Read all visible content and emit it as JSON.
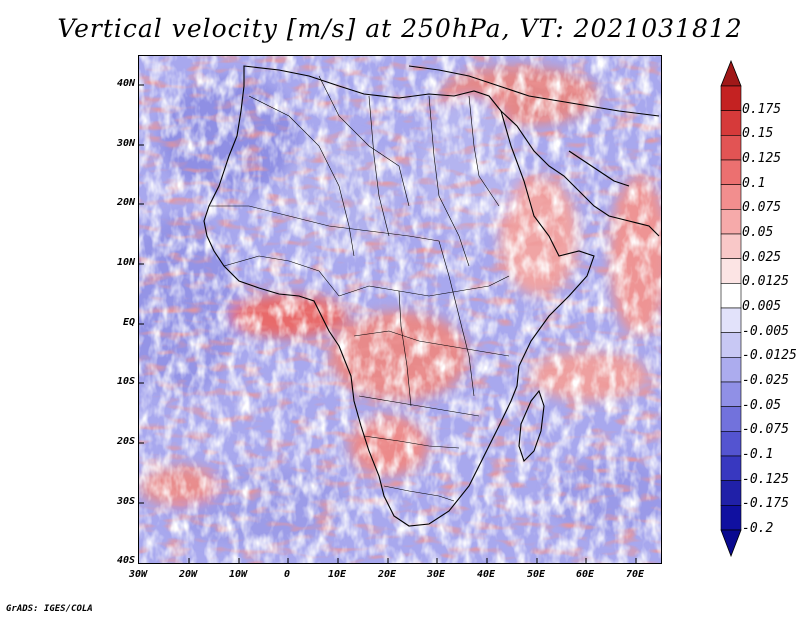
{
  "title": "Vertical velocity [m/s] at 250hPa, VT: 2021031812",
  "credit": "GrADS: IGES/COLA",
  "map": {
    "region": "Africa",
    "lon_range": [
      -30,
      75
    ],
    "lat_range": [
      -40,
      45
    ],
    "lat_labels": [
      "40N",
      "30N",
      "20N",
      "10N",
      "EQ",
      "10S",
      "20S",
      "30S",
      "40S"
    ],
    "lon_labels": [
      "30W",
      "20W",
      "10W",
      "0",
      "10E",
      "20E",
      "30E",
      "40E",
      "50E",
      "60E",
      "70E"
    ]
  },
  "colorbar": {
    "labels": [
      "0.175",
      "0.15",
      "0.125",
      "0.1",
      "0.075",
      "0.05",
      "0.025",
      "0.0125",
      "0.005",
      "-0.005",
      "-0.0125",
      "-0.025",
      "-0.05",
      "-0.075",
      "-0.1",
      "-0.125",
      "-0.175",
      "-0.2"
    ],
    "colors": [
      "#a01818",
      "#c42222",
      "#d63a3a",
      "#e25454",
      "#ec7070",
      "#f28e8e",
      "#f6aaaa",
      "#f9c8c8",
      "#fce4e4",
      "#ffffff",
      "#e2e2fa",
      "#c8c8f4",
      "#acacee",
      "#9090e6",
      "#7272dc",
      "#5454d0",
      "#3838c0",
      "#2020a8",
      "#1010a0",
      "#0a0a90"
    ]
  }
}
